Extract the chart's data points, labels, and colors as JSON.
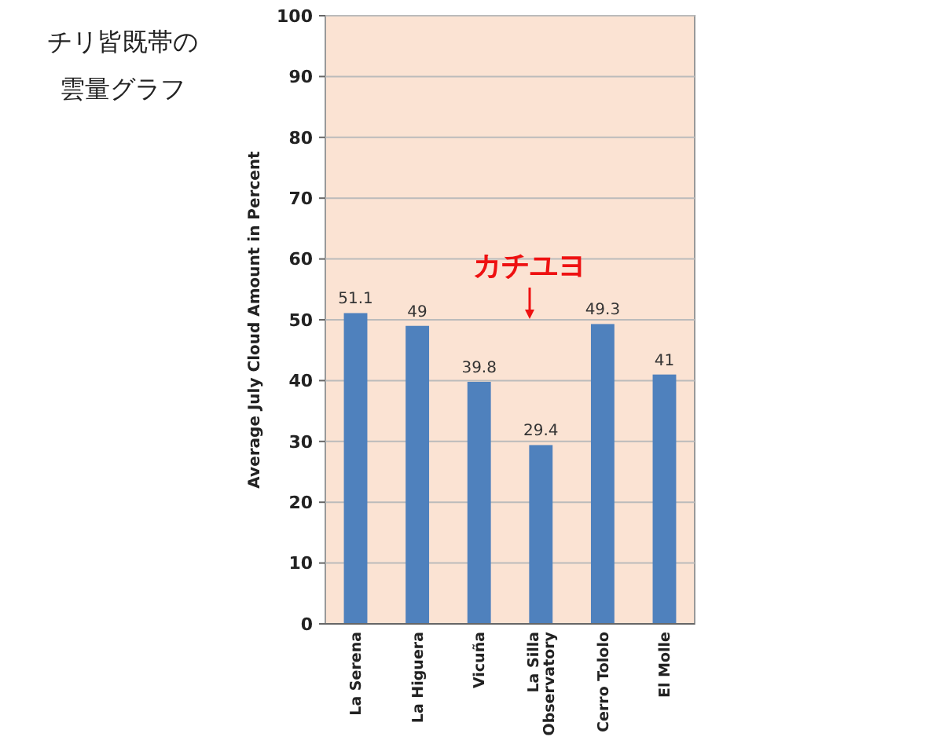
{
  "chart_data": {
    "type": "bar",
    "title": "チリ皆既帯の雲量グラフ",
    "ylabel": "Average July Cloud Amount in Percent",
    "categories": [
      "La Serena",
      "La Higuera",
      "Vicuña",
      "La Silla\nObservatory",
      "Cerro Tololo",
      "El Molle"
    ],
    "values": [
      51.1,
      49,
      39.8,
      29.4,
      49.3,
      41
    ],
    "color": "#4f81bd",
    "data_labels": true,
    "ylim": [
      0,
      100
    ],
    "yticks": [
      0,
      10,
      20,
      30,
      40,
      50,
      60,
      70,
      80,
      90,
      100
    ],
    "grid": "y",
    "annotations": [
      "カチユヨ"
    ]
  }
}
